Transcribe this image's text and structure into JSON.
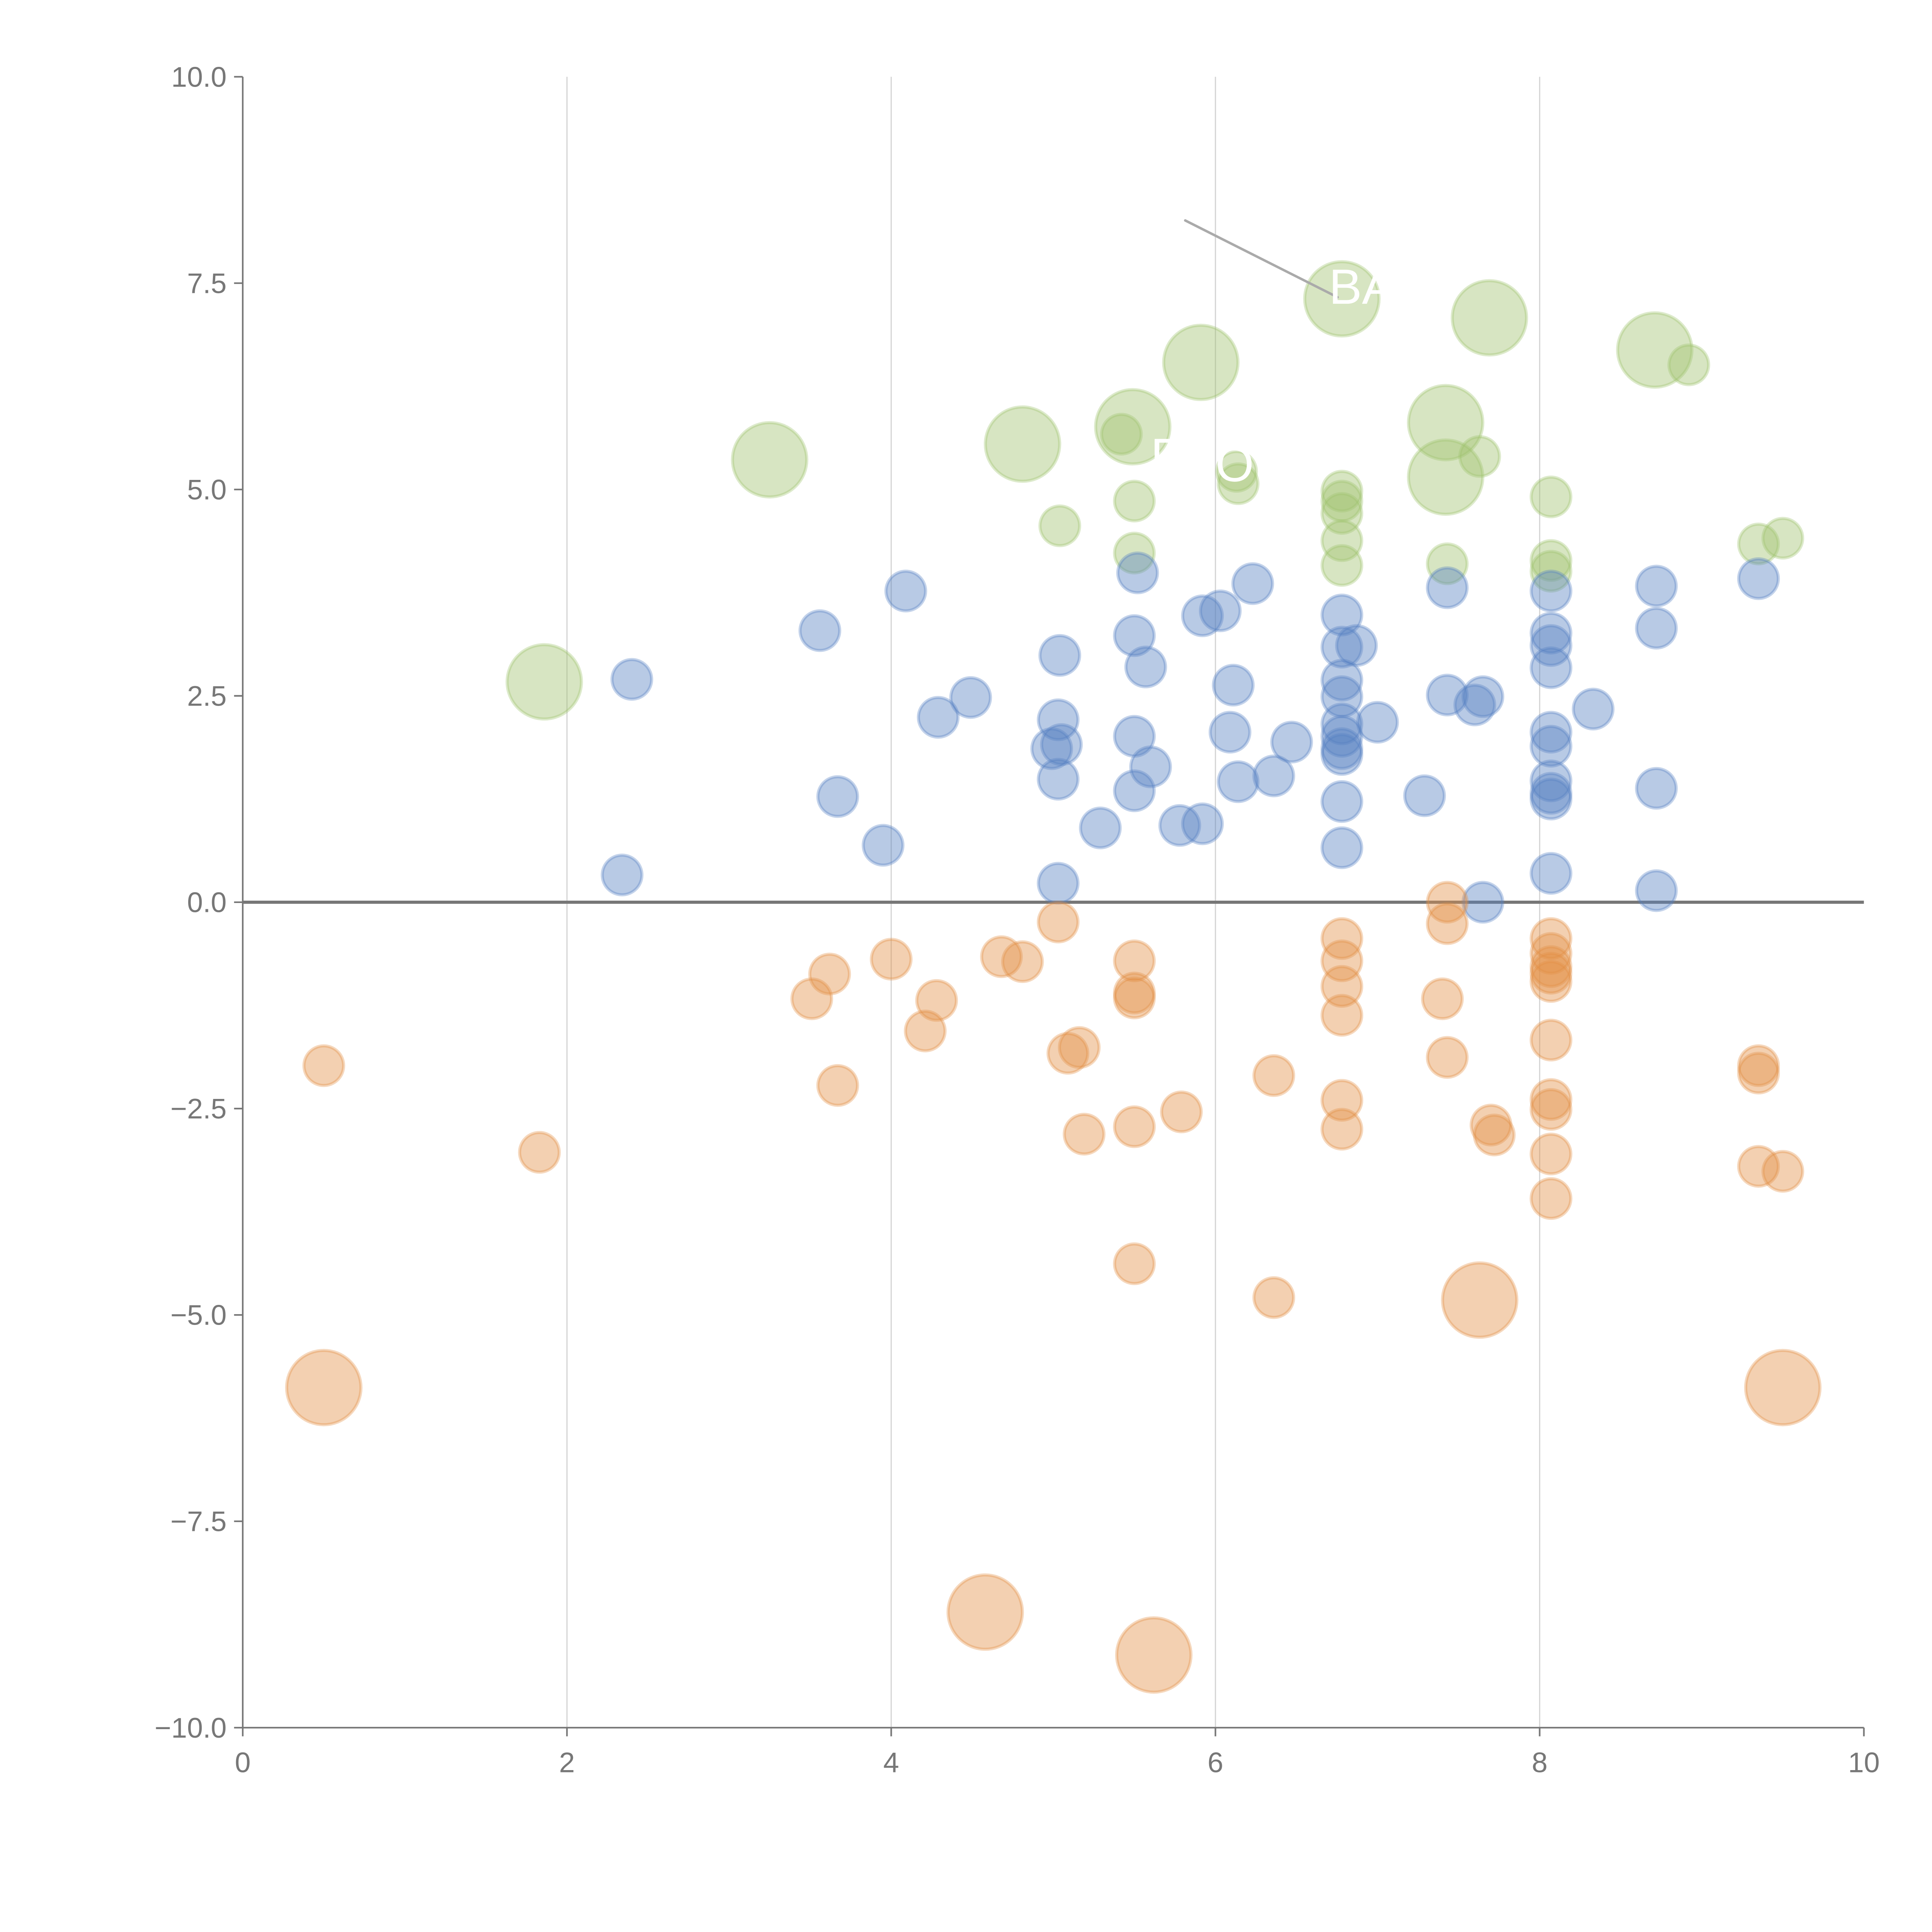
{
  "chart_data": {
    "type": "scatter",
    "title": "",
    "xlabel": "",
    "ylabel": "",
    "xlim": [
      0,
      10
    ],
    "ylim": [
      -10,
      10
    ],
    "xticks": [
      0,
      2,
      4,
      6,
      8,
      10
    ],
    "xtick_labels": [
      "0",
      "2",
      "4",
      "6",
      "8",
      "10"
    ],
    "yticks": [
      10,
      7.5,
      5,
      2.5,
      0,
      -2.5,
      -5,
      -7.5,
      -10
    ],
    "ytick_labels": [
      "10.0",
      "7.5",
      "5.0",
      "2.5",
      "0.0",
      "−2.5",
      "−5.0",
      "−7.5",
      "−10.0"
    ],
    "grid": "vertical",
    "legend": "none",
    "annotations": [
      {
        "text": "BA",
        "x": 6.7,
        "y": 7.25
      },
      {
        "text": "F",
        "x": 5.6,
        "y": 5.2
      },
      {
        "text": "O",
        "x": 6.0,
        "y": 5.1
      }
    ],
    "series": [
      {
        "name": "green",
        "color": "#9fc26e",
        "points": [
          [
            1.86,
            2.67,
            3
          ],
          [
            3.25,
            5.36,
            3
          ],
          [
            4.81,
            5.55,
            3
          ],
          [
            5.49,
            5.76,
            3
          ],
          [
            5.91,
            6.54,
            3
          ],
          [
            6.78,
            7.31,
            3
          ],
          [
            7.69,
            7.08,
            3
          ],
          [
            7.42,
            5.81,
            3
          ],
          [
            7.42,
            5.15,
            3
          ],
          [
            8.71,
            6.69,
            3
          ],
          [
            8.92,
            6.51,
            1
          ],
          [
            5.42,
            5.67,
            1
          ],
          [
            6.13,
            5.22,
            1
          ],
          [
            6.14,
            5.07,
            1
          ],
          [
            5.5,
            4.86,
            1
          ],
          [
            5.04,
            4.56,
            1
          ],
          [
            5.5,
            4.23,
            1
          ],
          [
            6.78,
            4.98,
            1
          ],
          [
            6.78,
            4.86,
            1
          ],
          [
            6.78,
            4.71,
            1
          ],
          [
            6.78,
            4.38,
            1
          ],
          [
            6.78,
            4.08,
            1
          ],
          [
            7.43,
            4.1,
            1
          ],
          [
            7.63,
            5.4,
            1
          ],
          [
            8.07,
            4.91,
            1
          ],
          [
            8.07,
            4.14,
            1
          ],
          [
            8.07,
            4.01,
            1
          ],
          [
            9.35,
            4.34,
            1
          ],
          [
            9.5,
            4.41,
            1
          ]
        ]
      },
      {
        "name": "blue",
        "color": "#5580c2",
        "points": [
          [
            2.4,
            2.7,
            1
          ],
          [
            2.34,
            0.33,
            1
          ],
          [
            3.56,
            3.29,
            1
          ],
          [
            3.67,
            1.28,
            1
          ],
          [
            3.95,
            0.69,
            1
          ],
          [
            4.09,
            3.77,
            1
          ],
          [
            4.29,
            2.24,
            1
          ],
          [
            4.49,
            2.48,
            1
          ],
          [
            5.04,
            2.99,
            1
          ],
          [
            5.03,
            2.21,
            1
          ],
          [
            4.99,
            1.86,
            1
          ],
          [
            5.05,
            1.91,
            1
          ],
          [
            5.03,
            1.49,
            1
          ],
          [
            5.03,
            0.23,
            1
          ],
          [
            5.29,
            0.9,
            1
          ],
          [
            5.52,
            3.99,
            1
          ],
          [
            5.5,
            3.23,
            1
          ],
          [
            5.57,
            2.85,
            1
          ],
          [
            5.5,
            2.01,
            1
          ],
          [
            5.6,
            1.64,
            1
          ],
          [
            5.5,
            1.35,
            1
          ],
          [
            5.78,
            0.93,
            1
          ],
          [
            5.92,
            0.95,
            1
          ],
          [
            5.92,
            3.47,
            1
          ],
          [
            6.03,
            3.53,
            1
          ],
          [
            6.23,
            3.86,
            1
          ],
          [
            6.11,
            2.63,
            1
          ],
          [
            6.09,
            2.06,
            1
          ],
          [
            6.14,
            1.46,
            1
          ],
          [
            6.36,
            1.53,
            1
          ],
          [
            6.47,
            1.94,
            1
          ],
          [
            6.78,
            3.48,
            1
          ],
          [
            6.78,
            3.09,
            1
          ],
          [
            6.87,
            3.11,
            1
          ],
          [
            6.78,
            2.69,
            1
          ],
          [
            6.78,
            2.49,
            1
          ],
          [
            6.78,
            2.16,
            1
          ],
          [
            6.78,
            2.01,
            1
          ],
          [
            6.78,
            1.86,
            1
          ],
          [
            6.78,
            1.79,
            1
          ],
          [
            7.0,
            2.18,
            1
          ],
          [
            6.78,
            1.22,
            1
          ],
          [
            6.78,
            0.66,
            1
          ],
          [
            7.29,
            1.29,
            1
          ],
          [
            7.43,
            3.81,
            1
          ],
          [
            7.43,
            2.51,
            1
          ],
          [
            7.6,
            2.39,
            1
          ],
          [
            7.65,
            2.49,
            1
          ],
          [
            7.65,
            0.0,
            1
          ],
          [
            8.07,
            3.77,
            1
          ],
          [
            8.07,
            3.26,
            1
          ],
          [
            8.07,
            3.11,
            1
          ],
          [
            8.07,
            2.84,
            1
          ],
          [
            8.07,
            2.06,
            1
          ],
          [
            8.07,
            1.89,
            1
          ],
          [
            8.07,
            1.47,
            1
          ],
          [
            8.07,
            1.32,
            1
          ],
          [
            8.07,
            1.25,
            1
          ],
          [
            8.07,
            0.35,
            1
          ],
          [
            8.33,
            2.34,
            1
          ],
          [
            8.72,
            3.83,
            1
          ],
          [
            8.72,
            3.32,
            1
          ],
          [
            8.72,
            1.38,
            1
          ],
          [
            8.72,
            0.14,
            1
          ],
          [
            9.35,
            3.92,
            1
          ]
        ]
      },
      {
        "name": "orange",
        "color": "#e38e44",
        "points": [
          [
            0.5,
            -1.98,
            1
          ],
          [
            1.83,
            -3.03,
            1
          ],
          [
            3.51,
            -1.17,
            1
          ],
          [
            3.62,
            -0.87,
            1
          ],
          [
            3.67,
            -2.22,
            1
          ],
          [
            4.0,
            -0.69,
            1
          ],
          [
            4.21,
            -1.56,
            1
          ],
          [
            4.28,
            -1.19,
            1
          ],
          [
            4.68,
            -0.66,
            1
          ],
          [
            4.81,
            -0.72,
            1
          ],
          [
            5.03,
            -0.24,
            1
          ],
          [
            5.09,
            -1.83,
            1
          ],
          [
            5.16,
            -1.76,
            1
          ],
          [
            5.19,
            -2.81,
            1
          ],
          [
            5.5,
            -0.71,
            1
          ],
          [
            5.5,
            -1.1,
            1
          ],
          [
            5.5,
            -1.16,
            1
          ],
          [
            5.5,
            -2.72,
            1
          ],
          [
            5.79,
            -2.54,
            1
          ],
          [
            5.5,
            -4.38,
            1
          ],
          [
            6.36,
            -2.1,
            1
          ],
          [
            6.36,
            -4.79,
            1
          ],
          [
            6.78,
            -0.44,
            1
          ],
          [
            6.78,
            -0.71,
            1
          ],
          [
            6.78,
            -1.02,
            1
          ],
          [
            6.78,
            -1.37,
            1
          ],
          [
            6.78,
            -2.4,
            1
          ],
          [
            6.78,
            -2.75,
            1
          ],
          [
            7.43,
            0.0,
            1
          ],
          [
            7.43,
            -0.26,
            1
          ],
          [
            7.4,
            -1.17,
            1
          ],
          [
            7.43,
            -1.88,
            1
          ],
          [
            7.7,
            -2.7,
            1
          ],
          [
            7.72,
            -2.82,
            1
          ],
          [
            8.07,
            -0.44,
            1
          ],
          [
            8.07,
            -0.62,
            1
          ],
          [
            8.07,
            -0.78,
            1
          ],
          [
            8.07,
            -0.86,
            1
          ],
          [
            8.07,
            -0.96,
            1
          ],
          [
            8.07,
            -1.67,
            1
          ],
          [
            8.07,
            -2.39,
            1
          ],
          [
            8.07,
            -2.51,
            1
          ],
          [
            8.07,
            -3.05,
            1
          ],
          [
            8.07,
            -3.59,
            1
          ],
          [
            9.35,
            -1.98,
            1
          ],
          [
            9.35,
            -2.07,
            1
          ],
          [
            9.35,
            -3.2,
            1
          ],
          [
            9.5,
            -3.26,
            1
          ],
          [
            0.5,
            -5.88,
            3
          ],
          [
            4.58,
            -8.6,
            3
          ],
          [
            5.62,
            -9.12,
            3
          ],
          [
            7.63,
            -4.82,
            3
          ],
          [
            9.5,
            -5.88,
            3
          ]
        ]
      }
    ]
  }
}
